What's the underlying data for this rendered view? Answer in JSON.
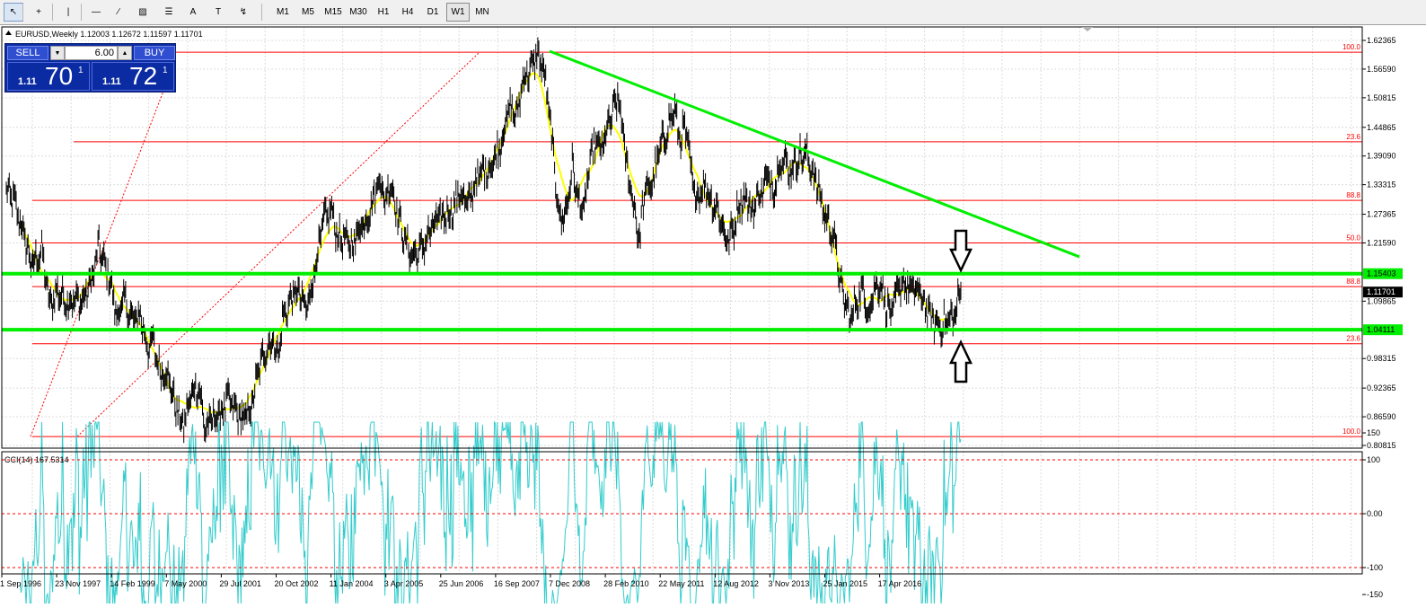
{
  "toolbar": {
    "tools": [
      {
        "name": "cursor-icon",
        "glyph": "↖"
      },
      {
        "name": "crosshair-icon",
        "glyph": "+"
      },
      {
        "name": "vertical-line-icon",
        "glyph": "|"
      },
      {
        "name": "horizontal-line-icon",
        "glyph": "—"
      },
      {
        "name": "trendline-icon",
        "glyph": "∕"
      },
      {
        "name": "channel-icon",
        "glyph": "▨"
      },
      {
        "name": "fibonacci-icon",
        "glyph": "☰"
      },
      {
        "name": "text-icon",
        "glyph": "A"
      },
      {
        "name": "text-label-icon",
        "glyph": "T"
      },
      {
        "name": "arrows-icon",
        "glyph": "↯"
      }
    ],
    "timeframes": [
      "M1",
      "M5",
      "M15",
      "M30",
      "H1",
      "H4",
      "D1",
      "W1",
      "MN"
    ],
    "active_timeframe": "W1"
  },
  "chart": {
    "header": "EURUSD,Weekly  1.12003 1.12672 1.11597 1.11701",
    "price_levels": [
      "1.62365",
      "1.56590",
      "1.50815",
      "1.44865",
      "1.39090",
      "1.33315",
      "1.27365",
      "1.21590",
      "1.09865",
      "0.98315",
      "0.92365",
      "0.86590",
      "0.80815"
    ],
    "current_price": "1.11701",
    "support_label": "1.04111",
    "resistance_label": "1.15403",
    "fib_labels": [
      "100.0",
      "23.6",
      "88.8",
      "50.0",
      "88.8",
      "23.6",
      "100.0"
    ],
    "date_labels": [
      "1 Sep 1996",
      "23 Nov 1997",
      "14 Feb 1999",
      "7 May 2000",
      "29 Jul 2001",
      "20 Oct 2002",
      "11 Jan 2004",
      "3 Apr 2005",
      "25 Jun 2006",
      "16 Sep 2007",
      "7 Dec 2008",
      "28 Feb 2010",
      "22 May 2011",
      "12 Aug 2012",
      "3 Nov 2013",
      "25 Jan 2015",
      "17 Apr 2016"
    ],
    "colors": {
      "price": "#000000",
      "moving_average": "#ffff00",
      "horizontal_levels": "#00ee00",
      "trendline": "#00ee00",
      "fibonacci": "#ff0000",
      "cci": "#33cccc",
      "grid": "#dcdcdc"
    }
  },
  "cci": {
    "label": "CCI(14) 167.5314",
    "levels": [
      "150",
      "100",
      "0.00",
      "-100",
      "-150"
    ]
  },
  "trade_panel": {
    "sell_label": "SELL",
    "buy_label": "BUY",
    "lot_value": "6.00",
    "bid": {
      "prefix": "1.11",
      "big": "70",
      "sup": "1"
    },
    "ask": {
      "prefix": "1.11",
      "big": "72",
      "sup": "1"
    }
  }
}
